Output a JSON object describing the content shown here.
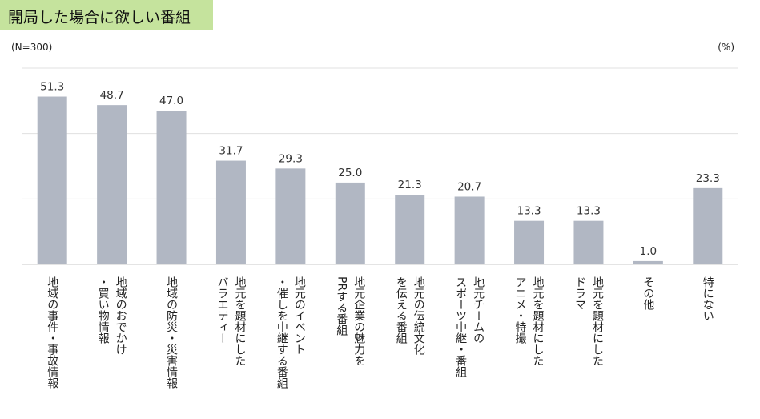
{
  "title": "開局した場合に欲しい番組",
  "chart_data": {
    "type": "bar",
    "title": "開局した場合に欲しい番組",
    "sample_note": "(N=300)",
    "unit": "(%)",
    "categories": [
      [
        "地域の事件・事故情報"
      ],
      [
        "地域のおでかけ",
        "・買い物情報"
      ],
      [
        "地域の防災・災害情報"
      ],
      [
        "地元を題材にした",
        "バラエティー"
      ],
      [
        "地元のイベント",
        "・催しを中継する番組"
      ],
      [
        "地元企業の魅力を",
        "PRする番組"
      ],
      [
        "地元の伝統文化",
        "を伝える番組"
      ],
      [
        "地元チームの",
        "スポーツ中継・番組"
      ],
      [
        "地元を題材にした",
        "アニメ・特撮"
      ],
      [
        "地元を題材にした",
        "ドラマ"
      ],
      [
        "その他"
      ],
      [
        "特にない"
      ]
    ],
    "values": [
      51.3,
      48.7,
      47.0,
      31.7,
      29.3,
      25.0,
      21.3,
      20.7,
      13.3,
      13.3,
      1.0,
      23.3
    ],
    "value_labels": [
      "51.3",
      "48.7",
      "47.0",
      "31.7",
      "29.3",
      "25.0",
      "21.3",
      "20.7",
      "13.3",
      "13.3",
      "1.0",
      "23.3"
    ],
    "ylim": [
      0,
      60
    ],
    "grid": true,
    "colors": {
      "bar": "#b1b7c3",
      "grid": "#e0e0e0",
      "axis": "#c8c8c8",
      "title_bg": "#c5e39d"
    }
  }
}
